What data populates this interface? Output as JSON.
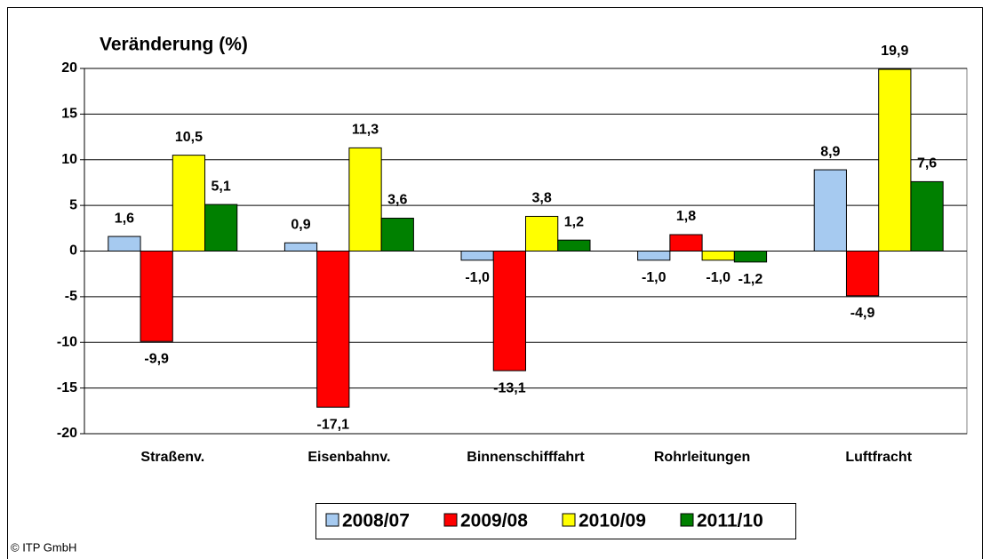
{
  "chart_data": {
    "type": "bar",
    "title": "Veränderung (%)",
    "categories": [
      "Straßenv.",
      "Eisenbahnv.",
      "Binnenschifffahrt",
      "Rohrleitungen",
      "Luftfracht"
    ],
    "series": [
      {
        "name": "2008/07",
        "color": "#a6caf0",
        "values": [
          1.6,
          0.9,
          -1.0,
          -1.0,
          8.9
        ],
        "value_labels": [
          "1,6",
          "0,9",
          "-1,0",
          "-1,0",
          "8,9"
        ]
      },
      {
        "name": "2009/08",
        "color": "#ff0000",
        "values": [
          -9.9,
          -17.1,
          -13.1,
          1.8,
          -4.9
        ],
        "value_labels": [
          "-9,9",
          "-17,1",
          "-13,1",
          "1,8",
          "-4,9"
        ]
      },
      {
        "name": "2010/09",
        "color": "#ffff00",
        "values": [
          10.5,
          11.3,
          3.8,
          -1.0,
          19.9
        ],
        "value_labels": [
          "10,5",
          "11,3",
          "3,8",
          "-1,0",
          "19,9"
        ]
      },
      {
        "name": "2011/10",
        "color": "#008000",
        "values": [
          5.1,
          3.6,
          1.2,
          -1.2,
          7.6
        ],
        "value_labels": [
          "5,1",
          "3,6",
          "1,2",
          "-1,2",
          "7,6"
        ]
      }
    ],
    "ylim": [
      -20,
      20
    ],
    "yticks": [
      -20,
      -15,
      -10,
      -5,
      0,
      5,
      10,
      15,
      20
    ],
    "grid": true,
    "legend": "bottom",
    "source": "© ITP GmbH"
  }
}
